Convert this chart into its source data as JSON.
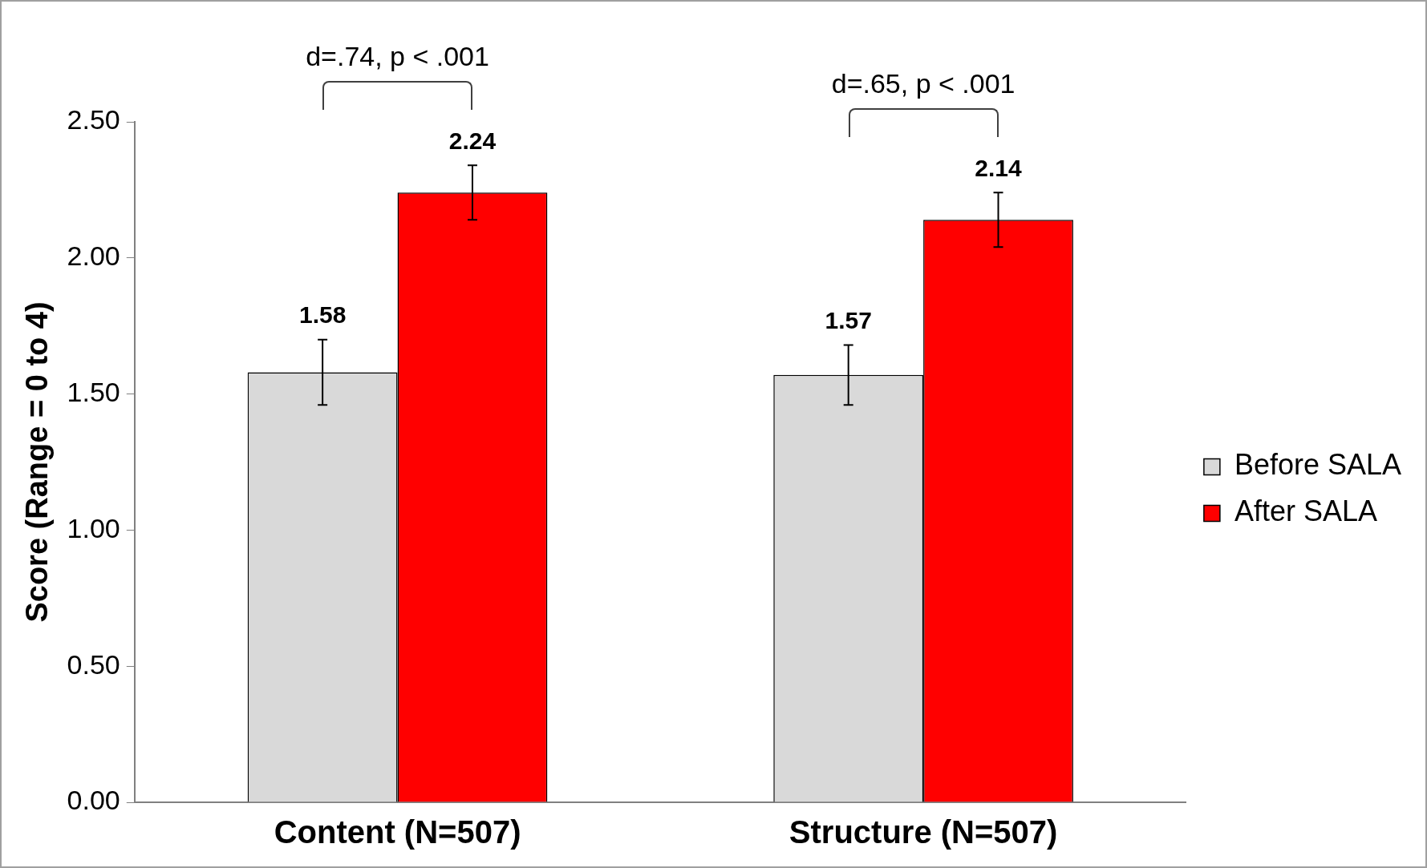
{
  "chart_data": {
    "type": "bar",
    "ylabel": "Score (Range = 0 to 4)",
    "categories": [
      "Content (N=507)",
      "Structure (N=507)"
    ],
    "series": [
      {
        "name": "Before SALA",
        "color": "#d9d9d9",
        "values": [
          1.58,
          1.57
        ],
        "errors": [
          0.12,
          0.11
        ]
      },
      {
        "name": "After SALA",
        "color": "#ff0000",
        "values": [
          2.24,
          2.14
        ],
        "errors": [
          0.1,
          0.1
        ]
      }
    ],
    "ylim": [
      0,
      2.5
    ],
    "yticks": [
      {
        "value": 0,
        "label": "0.00"
      },
      {
        "value": 0.5,
        "label": "0.50"
      },
      {
        "value": 1,
        "label": "1.00"
      },
      {
        "value": 1.5,
        "label": "1.50"
      },
      {
        "value": 2,
        "label": "2.00"
      },
      {
        "value": 2.5,
        "label": "2.50"
      }
    ],
    "grid": false,
    "legend": "right",
    "data_labels": true,
    "annotations": [
      "d=.74, p < .001",
      "d=.65, p < .001"
    ]
  }
}
